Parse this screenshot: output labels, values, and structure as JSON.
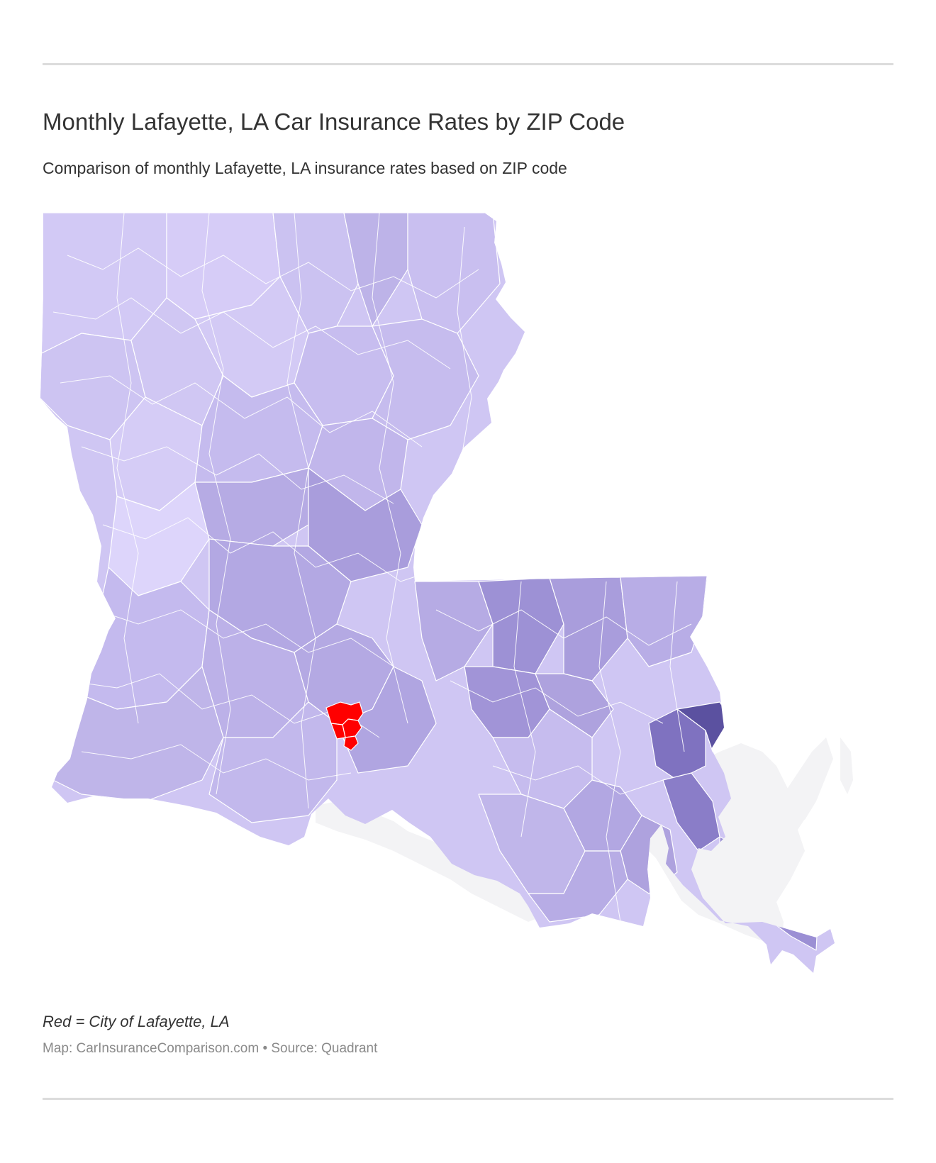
{
  "header": {
    "title": "Monthly Lafayette, LA Car Insurance Rates by ZIP Code",
    "subtitle": "Comparison of monthly Lafayette, LA insurance rates based on ZIP code"
  },
  "map": {
    "highlight_color": "#ff0000",
    "color_scale": [
      "#ddd5fb",
      "#cfc6f3",
      "#bfb5e9",
      "#aea2de",
      "#9b8fd4",
      "#5b51a0"
    ],
    "water_color": "#f3f3f5"
  },
  "footer": {
    "legend_note": "Red = City of Lafayette, LA",
    "credit": "Map: CarInsuranceComparison.com • Source: Quadrant"
  }
}
